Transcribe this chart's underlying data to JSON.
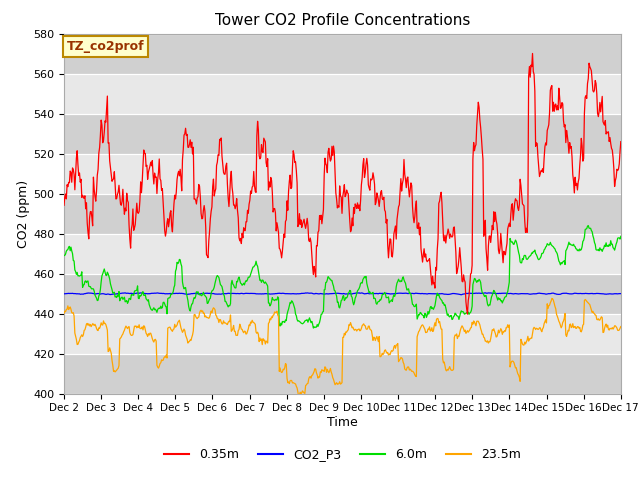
{
  "title": "Tower CO2 Profile Concentrations",
  "xlabel": "Time",
  "ylabel": "CO2 (ppm)",
  "ylim": [
    400,
    580
  ],
  "xlim_days": 15,
  "background_color": "#ffffff",
  "plot_bg_color": "#d8d8d8",
  "band_light": "#e8e8e8",
  "band_dark": "#d0d0d0",
  "grid_color": "#ffffff",
  "label_box_text": "TZ_co2prof",
  "label_box_bg": "#ffffcc",
  "label_box_edge": "#bb8800",
  "series": {
    "red": {
      "label": "0.35m",
      "color": "#ff0000"
    },
    "blue": {
      "label": "CO2_P3",
      "color": "#0000ff"
    },
    "green": {
      "label": "6.0m",
      "color": "#00dd00"
    },
    "orange": {
      "label": "23.5m",
      "color": "#ffa500"
    }
  },
  "tick_labels": [
    "Dec 2",
    "Dec 3",
    "Dec 4",
    "Dec 5",
    "Dec 6",
    "Dec 7",
    "Dec 8",
    "Dec 9",
    "Dec 10",
    "Dec 11",
    "Dec 12",
    "Dec 13",
    "Dec 14",
    "Dec 15",
    "Dec 16",
    "Dec 17"
  ],
  "yticks": [
    400,
    420,
    440,
    460,
    480,
    500,
    520,
    540,
    560,
    580
  ]
}
